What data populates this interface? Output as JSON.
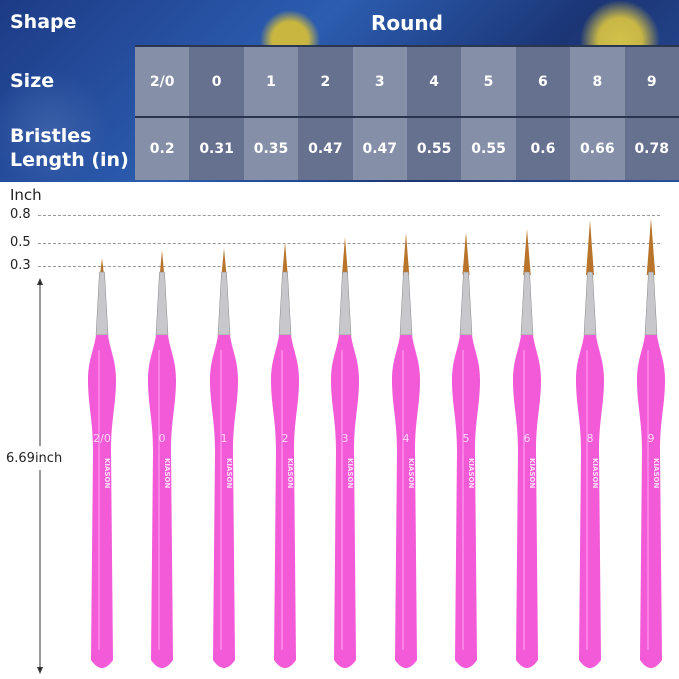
{
  "table": {
    "shape_label": "Shape",
    "shape_value": "Round",
    "size_label": "Size",
    "bristles_label": "Bristles Length (in)",
    "sizes": [
      "2/0",
      "0",
      "1",
      "2",
      "3",
      "4",
      "5",
      "6",
      "8",
      "9"
    ],
    "lengths": [
      "0.2",
      "0.31",
      "0.35",
      "0.47",
      "0.47",
      "0.55",
      "0.55",
      "0.6",
      "0.66",
      "0.78"
    ]
  },
  "scale": {
    "unit": "Inch",
    "ticks": [
      "0.8",
      "0.5",
      "0.3"
    ],
    "total_length": "6.69inch"
  },
  "brushes": {
    "brand": "KIASON",
    "handle_color": "#f25ad8",
    "bristle_color": "#b8742a",
    "ferrule_color": "#c8c8cc"
  }
}
